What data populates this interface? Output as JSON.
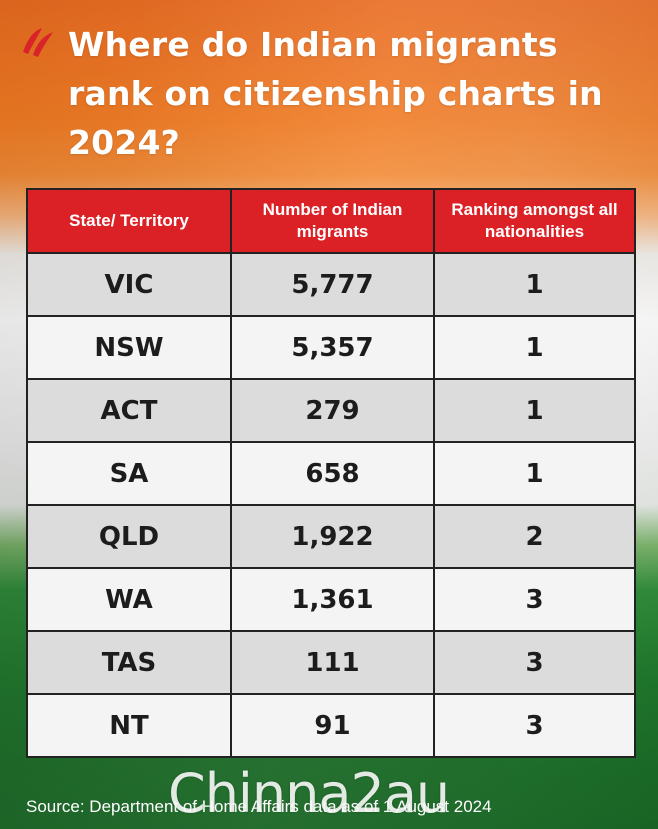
{
  "header": {
    "title": "Where do Indian migrants rank on citizenship charts in 2024?"
  },
  "chart_data": {
    "type": "table",
    "title": "Where do Indian migrants rank on citizenship charts in 2024?",
    "columns": [
      "State/ Territory",
      "Number of Indian migrants",
      "Ranking amongst all nationalities"
    ],
    "rows": [
      [
        "VIC",
        "5,777",
        "1"
      ],
      [
        "NSW",
        "5,357",
        "1"
      ],
      [
        "ACT",
        "279",
        "1"
      ],
      [
        "SA",
        "658",
        "1"
      ],
      [
        "QLD",
        "1,922",
        "2"
      ],
      [
        "WA",
        "1,361",
        "3"
      ],
      [
        "TAS",
        "111",
        "3"
      ],
      [
        "NT",
        "91",
        "3"
      ]
    ]
  },
  "footer": {
    "source": "Source: Department of Home Affairs data as of 1 August 2024"
  },
  "watermark": "Chinna2au",
  "colors": {
    "header_red": "#dc2126",
    "row_shade": "#dcdcdc",
    "row_light": "#f4f4f4",
    "flag_saffron": "#f07a22",
    "flag_green": "#1f7a2c"
  }
}
